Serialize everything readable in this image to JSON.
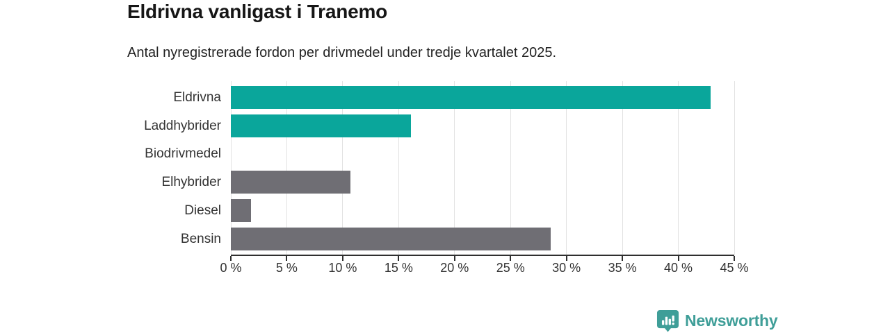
{
  "header": {
    "title": "Eldrivna vanligast i Tranemo",
    "subtitle": "Antal nyregistrerade fordon per drivmedel under tredje kvartalet 2025."
  },
  "chart_data": {
    "type": "bar",
    "orientation": "horizontal",
    "categories": [
      "Eldrivna",
      "Laddhybrider",
      "Biodrivmedel",
      "Elhybrider",
      "Diesel",
      "Bensin"
    ],
    "values": [
      42.9,
      16.1,
      0,
      10.7,
      1.8,
      28.6
    ],
    "bar_colors": [
      "#0aa69b",
      "#0aa69b",
      "#6f6e74",
      "#6f6e74",
      "#6f6e74",
      "#6f6e74"
    ],
    "title": "Eldrivna vanligast i Tranemo",
    "xlabel": "",
    "ylabel": "",
    "xlim": [
      0,
      45
    ],
    "x_ticks": [
      0,
      5,
      10,
      15,
      20,
      25,
      30,
      35,
      40,
      45
    ],
    "x_tick_labels": [
      "0 %",
      "5 %",
      "10 %",
      "15 %",
      "20 %",
      "25 %",
      "30 %",
      "35 %",
      "40 %",
      "45 %"
    ],
    "grid": true,
    "legend": "none",
    "value_labels": "none"
  },
  "branding": {
    "logo_text": "Newsworthy",
    "logo_color": "#3f9e98"
  },
  "colors": {
    "highlight_bar": "#0aa69b",
    "default_bar": "#6f6e74",
    "gridline": "#e2e2e2",
    "axis": "#2f2f2f",
    "title_text": "#161616",
    "label_text": "#333333"
  }
}
